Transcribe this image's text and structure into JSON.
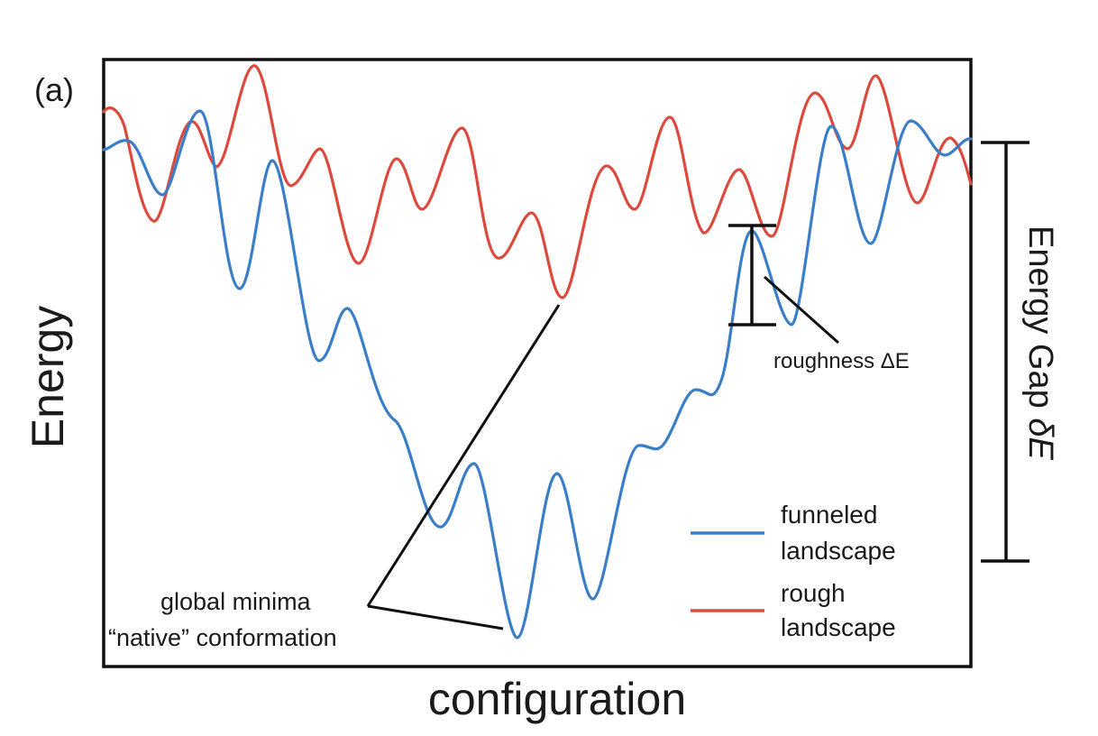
{
  "panel_label": "(a)",
  "axes": {
    "ylabel": "Energy",
    "xlabel": "configuration"
  },
  "annotations": {
    "global_min_line1": "global minima",
    "global_min_line2": "“native” conformation",
    "roughness": "roughness ΔE",
    "energy_gap_prefix": "Energy Gap ",
    "energy_gap_symbol": "δE"
  },
  "legend": {
    "funneled_line1": "funneled",
    "funneled_line2": "landscape",
    "rough_line1": "rough",
    "rough_line2": "landscape"
  },
  "colors": {
    "funneled": "#3a7ec8",
    "rough": "#dc4a3e",
    "ink": "#1a1a1a"
  }
}
